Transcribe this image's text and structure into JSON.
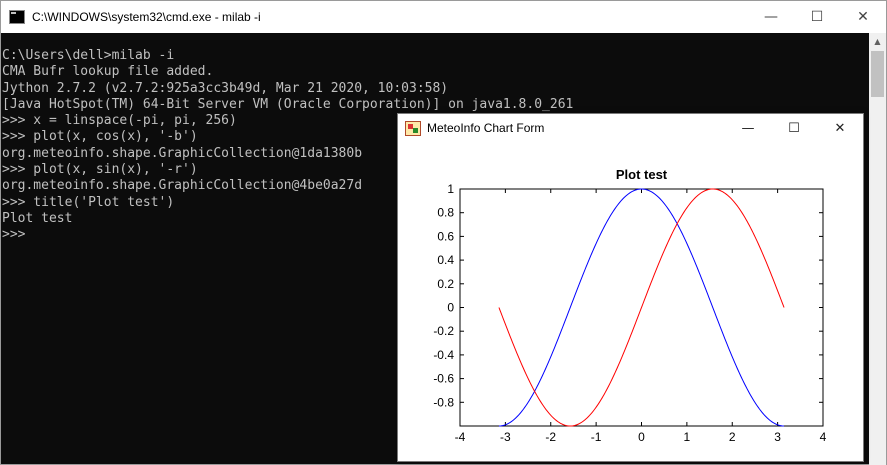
{
  "cmd": {
    "title": "C:\\WINDOWS\\system32\\cmd.exe - milab  -i",
    "lines": [
      "C:\\Users\\dell>milab -i",
      "CMA Bufr lookup file added.",
      "Jython 2.7.2 (v2.7.2:925a3cc3b49d, Mar 21 2020, 10:03:58)",
      "[Java HotSpot(TM) 64-Bit Server VM (Oracle Corporation)] on java1.8.0_261",
      ">>> x = linspace(-pi, pi, 256)",
      ">>> plot(x, cos(x), '-b')",
      "org.meteoinfo.shape.GraphicCollection@1da1380b",
      ">>> plot(x, sin(x), '-r')",
      "org.meteoinfo.shape.GraphicCollection@4be0a27d",
      ">>> title('Plot test')",
      "Plot test",
      ">>>"
    ]
  },
  "chart_window": {
    "title": "MeteoInfo Chart Form"
  },
  "chart_data": {
    "type": "line",
    "title": "Plot test",
    "xlabel": "",
    "ylabel": "",
    "xlim": [
      -4,
      4
    ],
    "ylim": [
      -1,
      1
    ],
    "xticks": [
      -4,
      -3,
      -2,
      -1,
      0,
      1,
      2,
      3,
      4
    ],
    "yticks": [
      -0.8,
      -0.6,
      -0.4,
      -0.2,
      0,
      0.2,
      0.4,
      0.6,
      0.8,
      1
    ],
    "ytick_labels": [
      "-0.8",
      "-0.6",
      "-0.4",
      "-0.2",
      "0",
      "0.2",
      "0.4",
      "0.6",
      "0.8",
      "1"
    ],
    "grid": false,
    "series": [
      {
        "function": "cos(x)",
        "color": "#0000ff",
        "x": [
          -3.1416,
          -2.7489,
          -2.3562,
          -1.9635,
          -1.5708,
          -1.1781,
          -0.7854,
          -0.3927,
          0,
          0.3927,
          0.7854,
          1.1781,
          1.5708,
          1.9635,
          2.3562,
          2.7489,
          3.1416
        ],
        "y": [
          -1,
          -0.9239,
          -0.7071,
          -0.3827,
          0,
          0.3827,
          0.7071,
          0.9239,
          1,
          0.9239,
          0.7071,
          0.3827,
          0,
          -0.3827,
          -0.7071,
          -0.9239,
          -1
        ]
      },
      {
        "function": "sin(x)",
        "color": "#ff0000",
        "x": [
          -3.1416,
          -2.7489,
          -2.3562,
          -1.9635,
          -1.5708,
          -1.1781,
          -0.7854,
          -0.3927,
          0,
          0.3927,
          0.7854,
          1.1781,
          1.5708,
          1.9635,
          2.3562,
          2.7489,
          3.1416
        ],
        "y": [
          0,
          -0.3827,
          -0.7071,
          -0.9239,
          -1,
          -0.9239,
          -0.7071,
          -0.3827,
          0,
          0.3827,
          0.7071,
          0.9239,
          1,
          0.9239,
          0.7071,
          0.3827,
          0
        ]
      }
    ]
  }
}
